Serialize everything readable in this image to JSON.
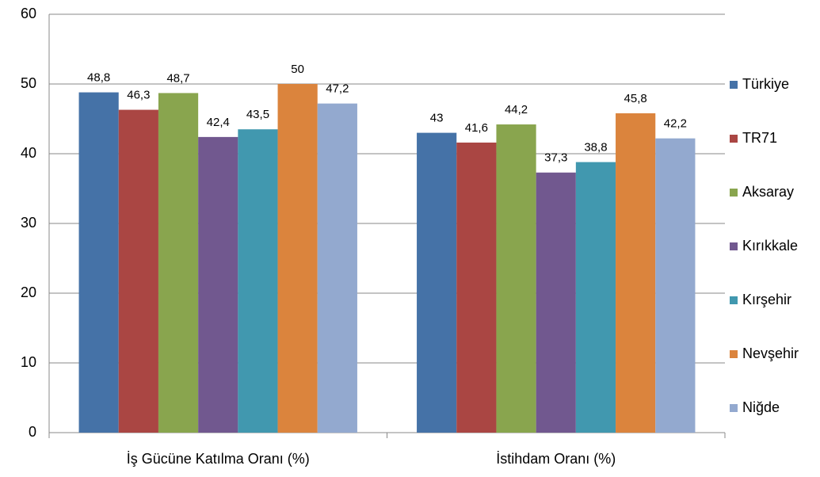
{
  "chart_data": {
    "type": "bar",
    "categories": [
      "İş Gücüne Katılma Oranı (%)",
      "İstihdam Oranı (%)"
    ],
    "series": [
      {
        "name": "Türkiye",
        "color": "#4572A7",
        "values": [
          48.8,
          43
        ],
        "value_labels": [
          "48,8",
          "43"
        ]
      },
      {
        "name": "TR71",
        "color": "#AA4643",
        "values": [
          46.3,
          41.6
        ],
        "value_labels": [
          "46,3",
          "41,6"
        ]
      },
      {
        "name": "Aksaray",
        "color": "#89A54E",
        "values": [
          48.7,
          44.2
        ],
        "value_labels": [
          "48,7",
          "44,2"
        ]
      },
      {
        "name": "Kırıkkale",
        "color": "#71588F",
        "values": [
          42.4,
          37.3
        ],
        "value_labels": [
          "42,4",
          "37,3"
        ]
      },
      {
        "name": "Kırşehir",
        "color": "#4198AF",
        "values": [
          43.5,
          38.8
        ],
        "value_labels": [
          "43,5",
          "38,8"
        ]
      },
      {
        "name": "Nevşehir",
        "color": "#DB843D",
        "values": [
          50,
          45.8
        ],
        "value_labels": [
          "50",
          "45,8"
        ]
      },
      {
        "name": "Niğde",
        "color": "#93A9CF",
        "values": [
          47.2,
          42.2
        ],
        "value_labels": [
          "47,2",
          "42,2"
        ]
      }
    ],
    "ylim": [
      0,
      60
    ],
    "yticks": [
      0,
      10,
      20,
      30,
      40,
      50,
      60
    ],
    "grid": true,
    "legend": "right"
  }
}
